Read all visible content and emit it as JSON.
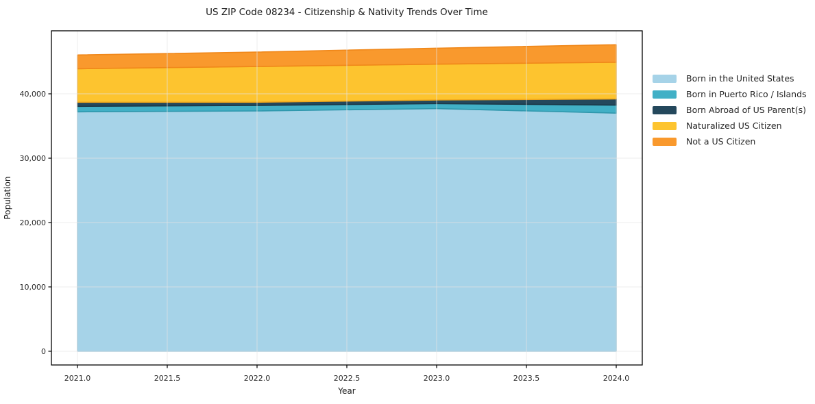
{
  "chart_data": {
    "type": "area",
    "stacked": true,
    "title": "US ZIP Code 08234 - Citizenship & Nativity Trends Over Time",
    "xlabel": "Year",
    "ylabel": "Population",
    "x": [
      2021,
      2022,
      2023,
      2024
    ],
    "series": [
      {
        "name": "Born in the United States",
        "color": "#a6d3e8",
        "edge": "#8cc0d8",
        "values": [
          37200,
          37340,
          37700,
          37000
        ]
      },
      {
        "name": "Born in Puerto Rico / Islands",
        "color": "#41b0c6",
        "edge": "#2f97ac",
        "values": [
          850,
          850,
          780,
          1245
        ]
      },
      {
        "name": "Born Abroad of US Parent(s)",
        "color": "#24485c",
        "edge": "#1b3948",
        "values": [
          640,
          500,
          560,
          960
        ]
      },
      {
        "name": "Naturalized US Citizen",
        "color": "#fdc42f",
        "edge": "#f0a71c",
        "values": [
          5210,
          5560,
          5570,
          5700
        ]
      },
      {
        "name": "Not a US Citizen",
        "color": "#f9992d",
        "edge": "#f08719",
        "values": [
          2130,
          2230,
          2480,
          2730
        ]
      }
    ],
    "x_ticks": [
      2021.0,
      2021.5,
      2022.0,
      2022.5,
      2023.0,
      2023.5,
      2024.0
    ],
    "y_ticks": [
      0,
      10000,
      20000,
      30000,
      40000
    ],
    "xlim": [
      2020.855,
      2024.145
    ],
    "ylim": [
      -2130,
      49790
    ],
    "grid": true,
    "legend_position": "right",
    "background_color": "#ffffff",
    "spine_color": "#000000",
    "grid_color": "#e4e4e4"
  }
}
